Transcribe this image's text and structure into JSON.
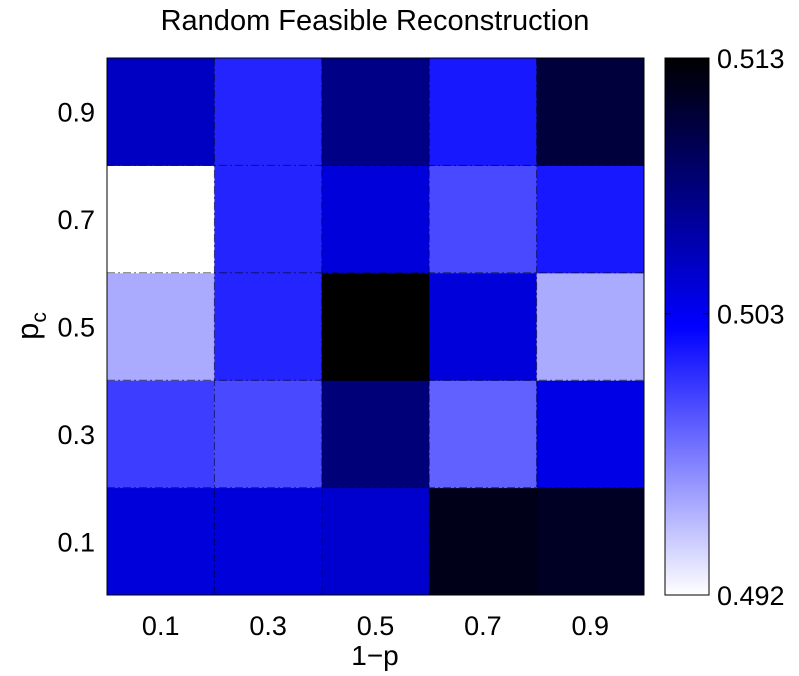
{
  "chart_data": {
    "type": "heatmap",
    "title": "Random Feasible Reconstruction",
    "xlabel": "1−p",
    "ylabel_base": "p",
    "ylabel_sub": "c",
    "x_categories": [
      "0.1",
      "0.3",
      "0.5",
      "0.7",
      "0.9"
    ],
    "y_categories": [
      "0.1",
      "0.3",
      "0.5",
      "0.7",
      "0.9"
    ],
    "values": [
      [
        0.504,
        0.504,
        0.5045,
        0.512,
        0.5115
      ],
      [
        0.5,
        0.4995,
        0.508,
        0.4985,
        0.5035
      ],
      [
        0.4955,
        0.501,
        0.513,
        0.504,
        0.4955
      ],
      [
        0.492,
        0.501,
        0.504,
        0.4995,
        0.5015
      ],
      [
        0.505,
        0.501,
        0.5075,
        0.5015,
        0.5105
      ]
    ],
    "colorbar": {
      "min": 0.492,
      "max": 0.513,
      "tick_values": [
        0.513,
        0.503,
        0.492
      ],
      "tick_labels": [
        "0.513",
        "0.503",
        "0.492"
      ]
    },
    "colormap": [
      "#ffffff",
      "#0000ff",
      "#000000"
    ],
    "grid": true
  }
}
